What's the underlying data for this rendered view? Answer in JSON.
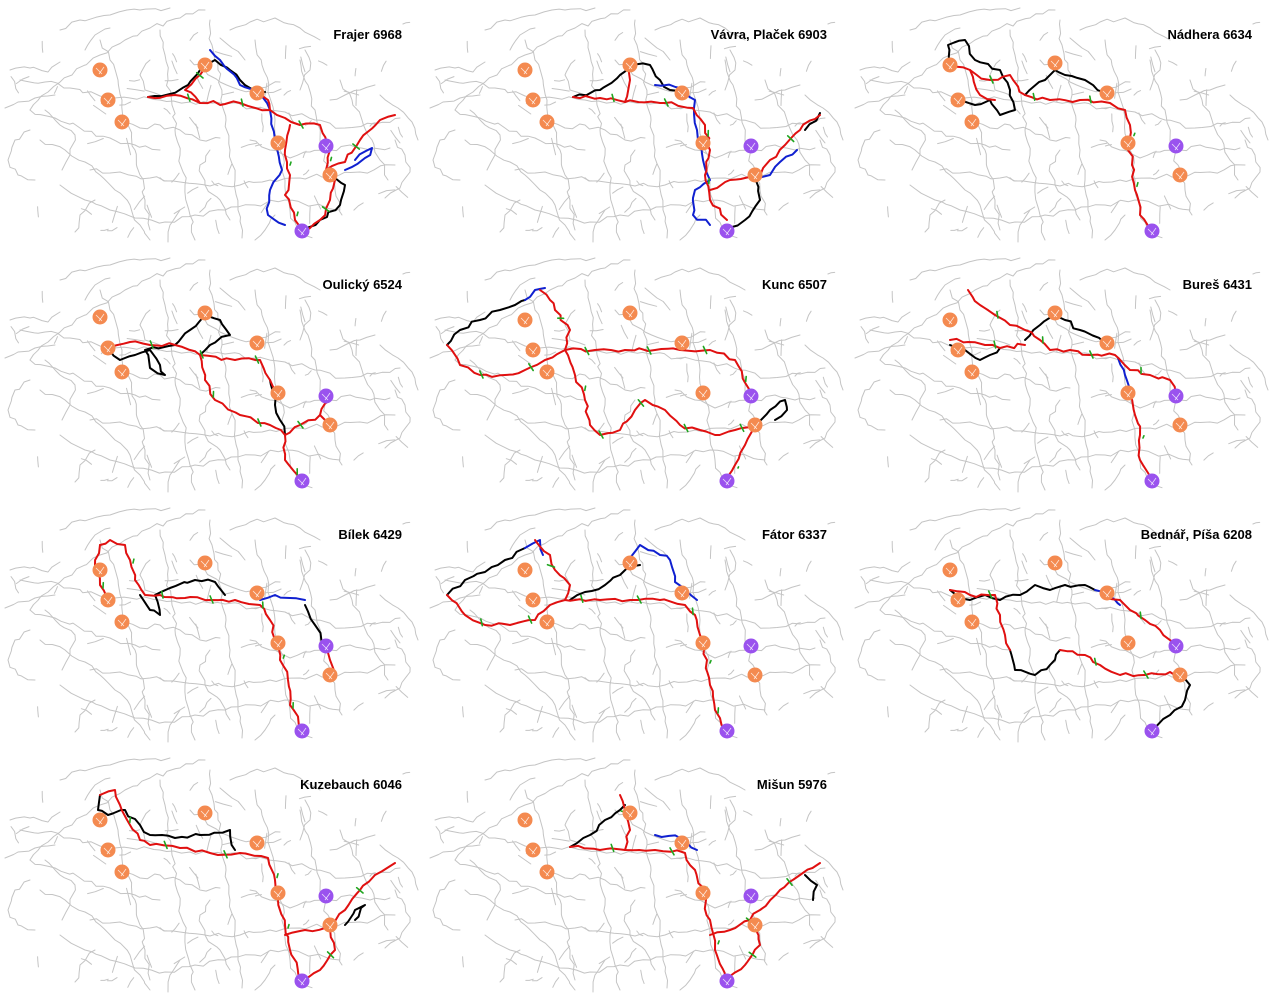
{
  "colors": {
    "network": "#c4c4c4",
    "route_main": "#e01010",
    "route_alt": "#000000",
    "route_blue": "#1020d0",
    "checkpoint_orange": "#f48a50",
    "checkpoint_purple": "#9a52ee",
    "direction_tick": "#1fa51f"
  },
  "panels": [
    {
      "name": "Frajer",
      "score": "6968",
      "label": "Frajer 6968"
    },
    {
      "name": "Vávra, Plaček",
      "score": "6903",
      "label": "Vávra, Plaček 6903"
    },
    {
      "name": "Nádhera",
      "score": "6634",
      "label": "Nádhera 6634"
    },
    {
      "name": "Oulický",
      "score": "6524",
      "label": "Oulický 6524"
    },
    {
      "name": "Kunc",
      "score": "6507",
      "label": "Kunc 6507"
    },
    {
      "name": "Bureš",
      "score": "6431",
      "label": "Bureš 6431"
    },
    {
      "name": "Bílek",
      "score": "6429",
      "label": "Bílek 6429"
    },
    {
      "name": "Fátor",
      "score": "6337",
      "label": "Fátor 6337"
    },
    {
      "name": "Bednář, Píša",
      "score": "6208",
      "label": "Bednář, Píša 6208"
    },
    {
      "name": "Kuzebauch",
      "score": "6046",
      "label": "Kuzebauch 6046"
    },
    {
      "name": "Mišun",
      "score": "5976",
      "label": "Mišun 5976"
    }
  ]
}
